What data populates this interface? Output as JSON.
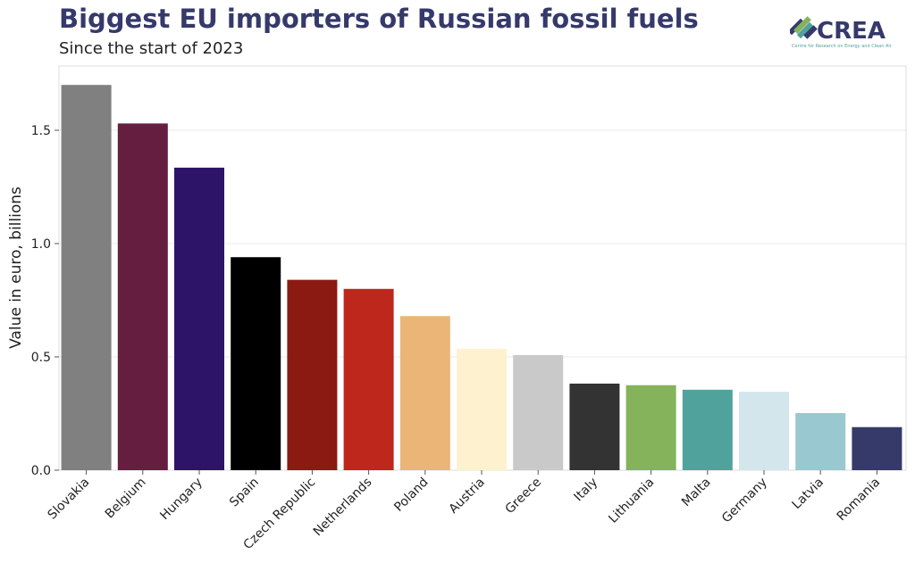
{
  "logo": {
    "text": "CREA",
    "tagline": "Centre for Research on Energy and Clean Air"
  },
  "chart_data": {
    "type": "bar",
    "title": "Biggest EU importers of Russian fossil fuels",
    "subtitle": "Since the start of 2023",
    "xlabel": "",
    "ylabel": "Value in euro, billions",
    "ylim": [
      0,
      1.78
    ],
    "yticks": [
      0.0,
      0.5,
      1.0,
      1.5
    ],
    "ytick_labels": [
      "0.0",
      "0.5",
      "1.0",
      "1.5"
    ],
    "grid": true,
    "categories": [
      "Slovakia",
      "Belgium",
      "Hungary",
      "Spain",
      "Czech Republic",
      "Netherlands",
      "Poland",
      "Austria",
      "Greece",
      "Italy",
      "Lithuania",
      "Malta",
      "Germany",
      "Latvia",
      "Romania"
    ],
    "values": [
      1.7,
      1.53,
      1.335,
      0.94,
      0.84,
      0.8,
      0.68,
      0.535,
      0.508,
      0.382,
      0.375,
      0.355,
      0.346,
      0.252,
      0.19
    ],
    "colors": [
      "#808080",
      "#661e40",
      "#2e1469",
      "#000000",
      "#8a1a12",
      "#bd271c",
      "#ebb577",
      "#fdf1cf",
      "#c9c9c9",
      "#333333",
      "#84b35b",
      "#50a29c",
      "#d2e6ec",
      "#9ac8d0",
      "#353a69"
    ]
  }
}
